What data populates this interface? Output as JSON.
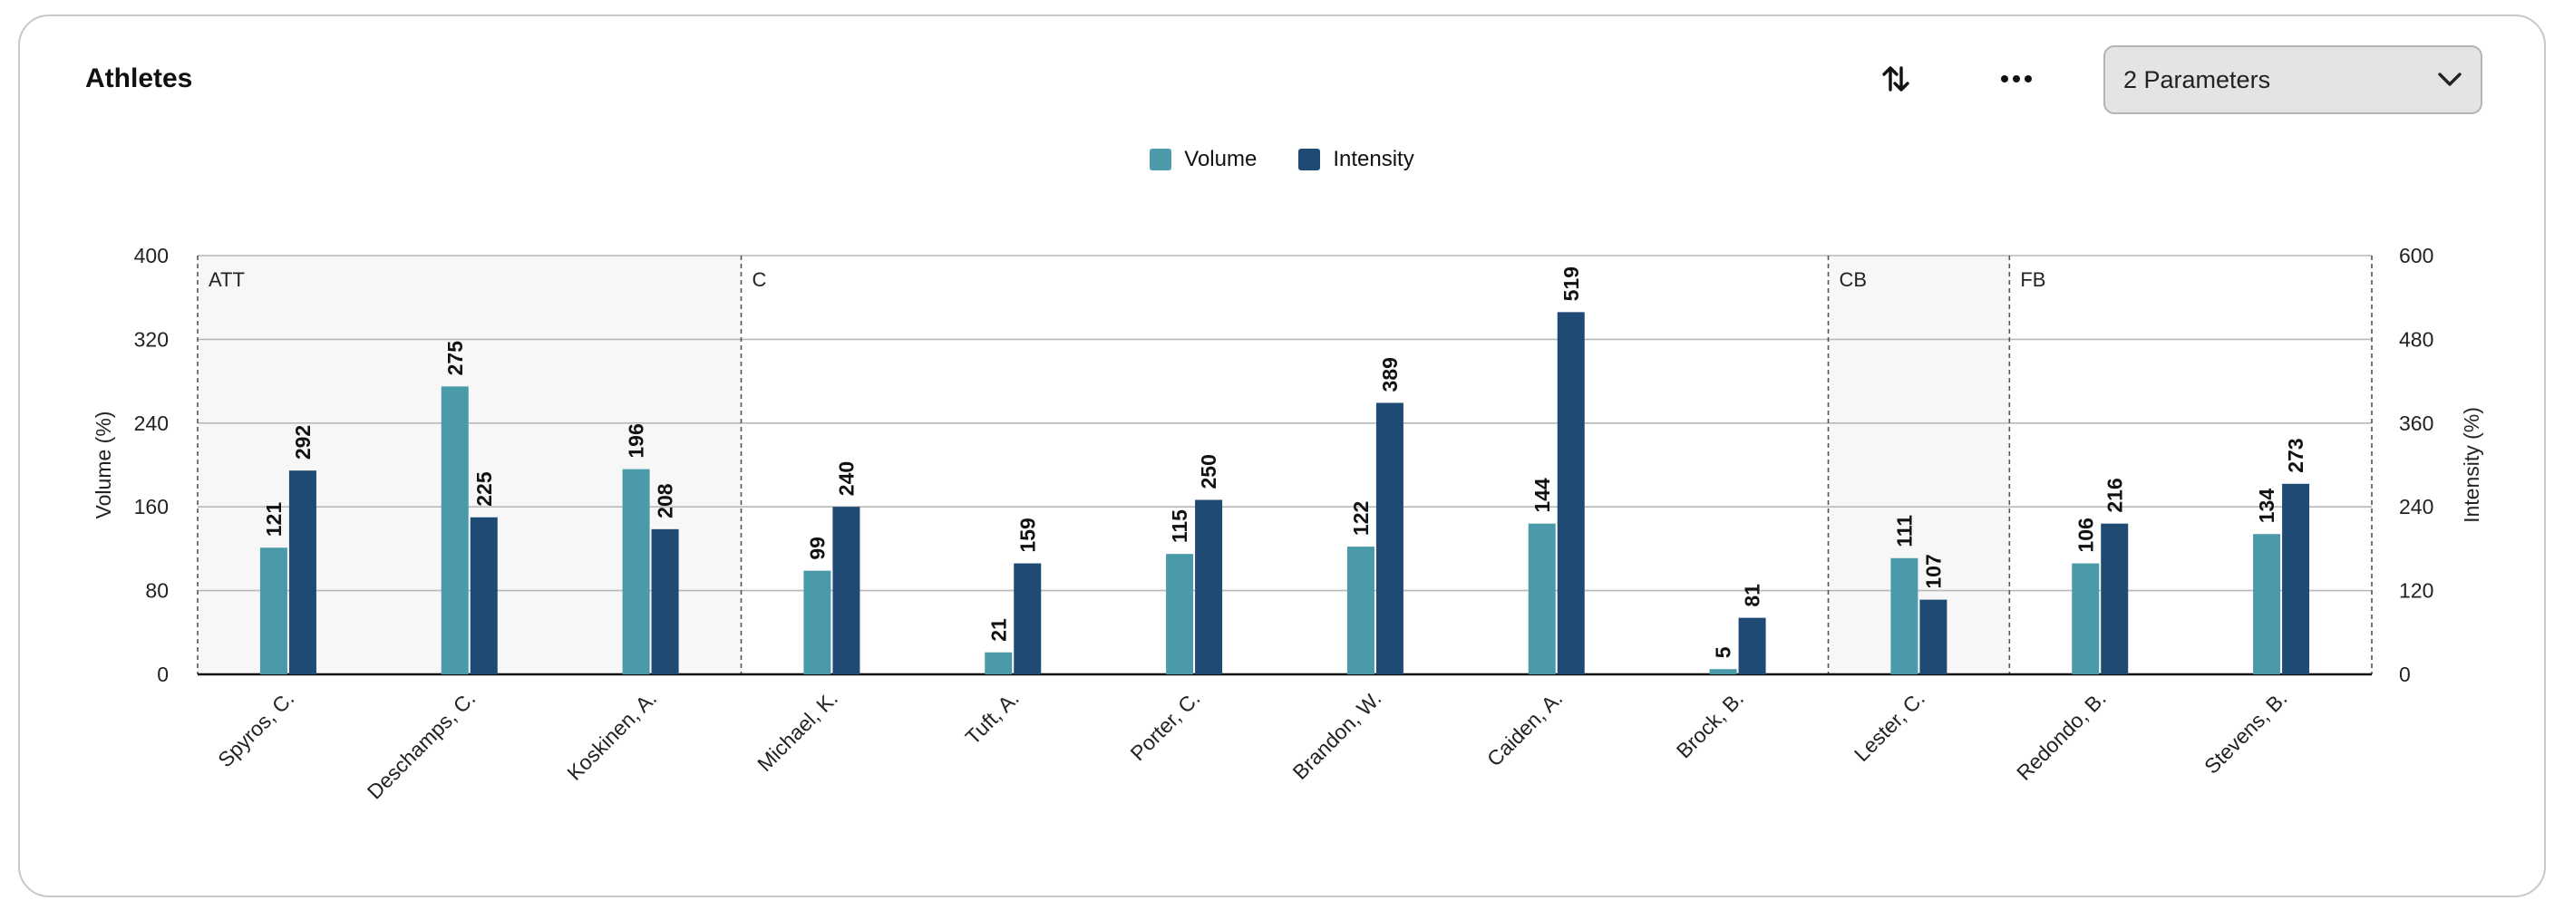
{
  "header": {
    "title": "Athletes",
    "sort_icon": "sort-arrows-icon",
    "more_icon": "more-horizontal-icon",
    "parameters_select": {
      "value": "2 Parameters",
      "icon": "chevron-down-icon"
    }
  },
  "colors": {
    "volume": "#4a9aaa",
    "intensity": "#1f4a74",
    "group_shade": "#f7f7f7",
    "grid": "#b8b8b8"
  },
  "chart_data": {
    "type": "bar",
    "title": "",
    "categories": [
      "Spyros, C.",
      "Deschamps, C.",
      "Koskinen, A.",
      "Michael, K.",
      "Tuft, A.",
      "Porter, C.",
      "Brandon, W.",
      "Caiden, A.",
      "Brock, B.",
      "Lester, C.",
      "Redondo, B.",
      "Stevens, B."
    ],
    "groups": [
      {
        "label": "ATT",
        "start": 0,
        "end": 2,
        "shaded": true
      },
      {
        "label": "C",
        "start": 3,
        "end": 8,
        "shaded": false
      },
      {
        "label": "CB",
        "start": 9,
        "end": 9,
        "shaded": true
      },
      {
        "label": "FB",
        "start": 10,
        "end": 11,
        "shaded": false
      }
    ],
    "series": [
      {
        "name": "Volume",
        "axis": "left",
        "values": [
          121,
          275,
          196,
          99,
          21,
          115,
          122,
          144,
          5,
          111,
          106,
          134
        ]
      },
      {
        "name": "Intensity",
        "axis": "right",
        "values": [
          292,
          225,
          208,
          240,
          159,
          250,
          389,
          519,
          81,
          107,
          216,
          273
        ]
      }
    ],
    "y_left": {
      "label": "Volume (%)",
      "min": 0,
      "max": 400,
      "ticks": [
        0,
        80,
        160,
        240,
        320,
        400
      ]
    },
    "y_right": {
      "label": "Intensity (%)",
      "min": 0,
      "max": 600,
      "ticks": [
        0,
        120,
        240,
        360,
        480,
        600
      ]
    },
    "legend_position": "top-center",
    "grid": true
  }
}
